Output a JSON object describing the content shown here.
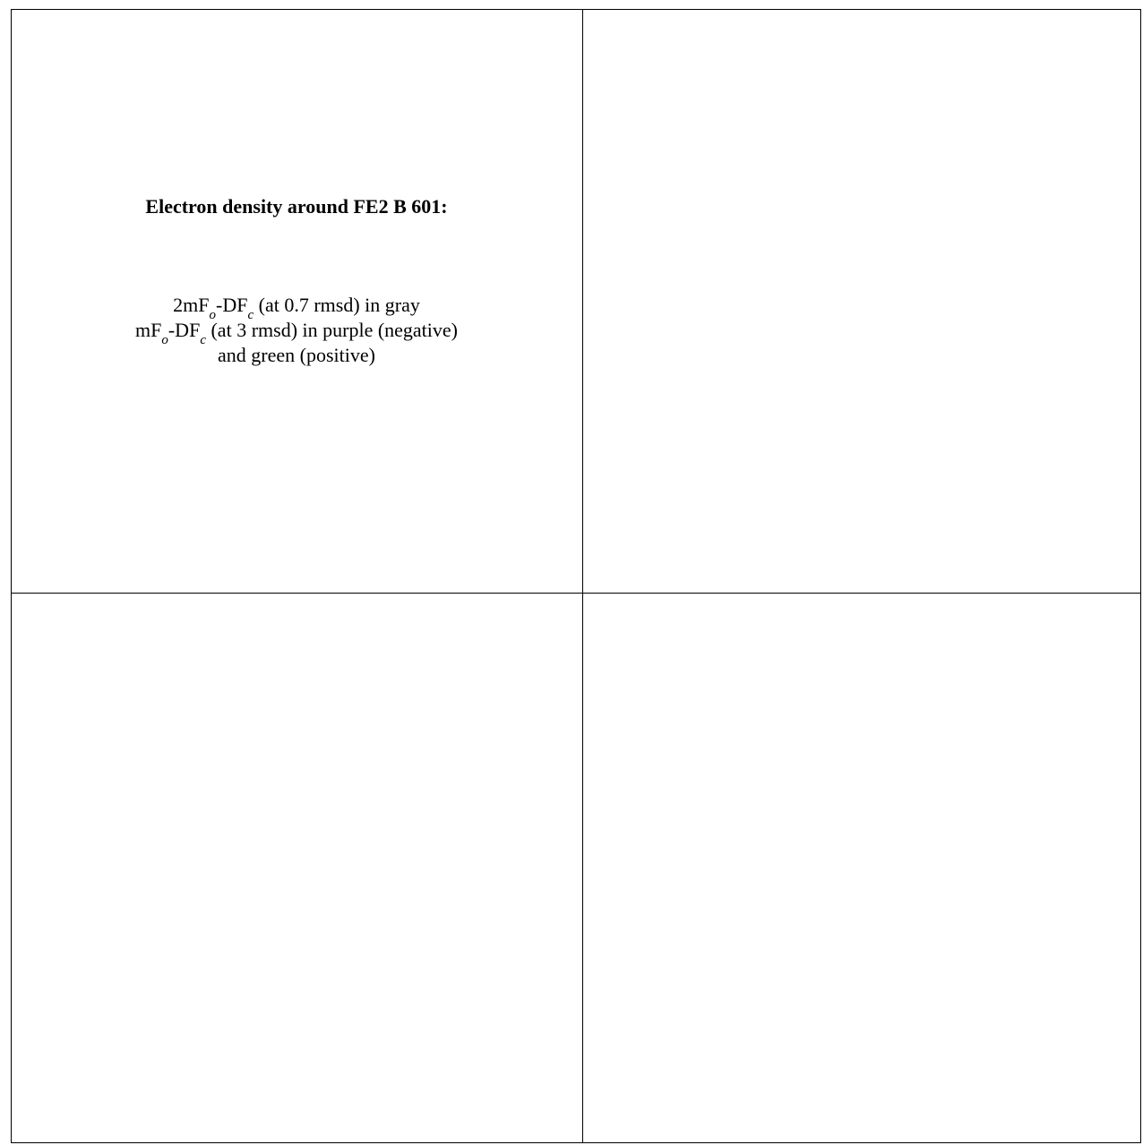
{
  "caption": {
    "title": "Electron density around FE2 B 601:",
    "lines": [
      [
        "2mF",
        "o",
        "-DF",
        "c",
        " (at 0.7 rmsd) in gray"
      ],
      [
        "mF",
        "o",
        "-DF",
        "c",
        " (at 3 rmsd) in purple (negative)"
      ],
      [
        "and green (positive)"
      ]
    ]
  }
}
